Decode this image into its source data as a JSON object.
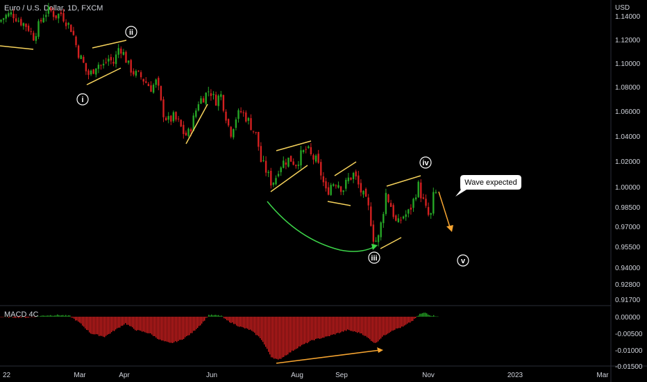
{
  "header": {
    "title": "Euro / U.S. Dollar, 1D, FXCM",
    "currency": "USD"
  },
  "colors": {
    "background": "#000000",
    "up": "#26a626",
    "down": "#d32020",
    "pattern_lines": "#f7d35c",
    "projection_arrow": "#f7a531",
    "curve_arrow": "#3dd64a",
    "divergence_arrow": "#f7a531",
    "text": "#d1d4dc"
  },
  "chart_data": [
    {
      "type": "candlestick",
      "title": "Euro / U.S. Dollar, 1D, FXCM",
      "y_axis_title": "USD",
      "ylim": [
        0.917,
        1.145
      ],
      "y_ticks": [
        "1.14000",
        "1.12000",
        "1.10000",
        "1.08000",
        "1.06000",
        "1.04000",
        "1.02000",
        "1.00000",
        "0.98500",
        "0.97000",
        "0.95500",
        "0.94000",
        "0.92800",
        "0.91700"
      ],
      "x_ticks": [
        "22",
        "Mar",
        "Apr",
        "Jun",
        "Aug",
        "Sep",
        "Nov",
        "2023",
        "Mar"
      ],
      "price_path": [
        [
          0,
          1.135
        ],
        [
          10,
          1.14
        ],
        [
          20,
          1.142
        ],
        [
          30,
          1.136
        ],
        [
          42,
          1.131
        ],
        [
          50,
          1.122
        ],
        [
          58,
          1.132
        ],
        [
          66,
          1.142
        ],
        [
          74,
          1.145
        ],
        [
          82,
          1.14
        ],
        [
          90,
          1.142
        ],
        [
          98,
          1.135
        ],
        [
          106,
          1.128
        ],
        [
          114,
          1.11
        ],
        [
          122,
          1.1
        ],
        [
          128,
          1.09
        ],
        [
          134,
          1.092
        ],
        [
          142,
          1.1
        ],
        [
          150,
          1.097
        ],
        [
          158,
          1.104
        ],
        [
          166,
          1.1
        ],
        [
          174,
          1.115
        ],
        [
          180,
          1.108
        ],
        [
          188,
          1.097
        ],
        [
          196,
          1.091
        ],
        [
          204,
          1.089
        ],
        [
          212,
          1.084
        ],
        [
          220,
          1.079
        ],
        [
          228,
          1.085
        ],
        [
          236,
          1.06
        ],
        [
          244,
          1.052
        ],
        [
          252,
          1.055
        ],
        [
          260,
          1.05
        ],
        [
          266,
          1.043
        ],
        [
          272,
          1.04
        ],
        [
          280,
          1.052
        ],
        [
          288,
          1.068
        ],
        [
          296,
          1.072
        ],
        [
          304,
          1.078
        ],
        [
          312,
          1.068
        ],
        [
          320,
          1.074
        ],
        [
          326,
          1.06
        ],
        [
          334,
          1.042
        ],
        [
          342,
          1.055
        ],
        [
          350,
          1.06
        ],
        [
          358,
          1.054
        ],
        [
          366,
          1.046
        ],
        [
          372,
          1.04
        ],
        [
          378,
          1.02
        ],
        [
          386,
          1.012
        ],
        [
          392,
          1.004
        ],
        [
          398,
          1.005
        ],
        [
          404,
          1.016
        ],
        [
          412,
          1.02
        ],
        [
          420,
          1.022
        ],
        [
          428,
          1.018
        ],
        [
          436,
          1.025
        ],
        [
          444,
          1.03
        ],
        [
          450,
          1.024
        ],
        [
          458,
          1.02
        ],
        [
          464,
          1.011
        ],
        [
          472,
          0.995
        ],
        [
          480,
          1.003
        ],
        [
          488,
          1.004
        ],
        [
          496,
          0.998
        ],
        [
          504,
          1.006
        ],
        [
          512,
          1.01
        ],
        [
          520,
          0.999
        ],
        [
          528,
          0.99
        ],
        [
          534,
          0.982
        ],
        [
          540,
          0.962
        ],
        [
          546,
          0.958
        ],
        [
          552,
          0.975
        ],
        [
          558,
          0.995
        ],
        [
          566,
          0.985
        ],
        [
          574,
          0.97
        ],
        [
          582,
          0.978
        ],
        [
          590,
          0.98
        ],
        [
          598,
          0.99
        ],
        [
          604,
          1.002
        ],
        [
          610,
          0.992
        ],
        [
          616,
          0.982
        ],
        [
          622,
          0.975
        ],
        [
          626,
          0.992
        ],
        [
          630,
          0.995
        ]
      ],
      "wave_labels": [
        "i",
        "ii",
        "iii",
        "iv",
        "v"
      ],
      "annotations": [
        "Wave expected"
      ]
    },
    {
      "type": "histogram",
      "title": "MACD 4C",
      "ylim": [
        -0.0155,
        0.0025
      ],
      "y_ticks": [
        "0.00000",
        "-0.00500",
        "-0.01000",
        "-0.01500"
      ],
      "histogram_path": [
        [
          0,
          -0.0001
        ],
        [
          40,
          -0.0002
        ],
        [
          65,
          0.0004
        ],
        [
          85,
          0.0005
        ],
        [
          100,
          0.0002
        ],
        [
          115,
          -0.002
        ],
        [
          130,
          -0.005
        ],
        [
          150,
          -0.006
        ],
        [
          165,
          -0.004
        ],
        [
          180,
          -0.002
        ],
        [
          195,
          -0.004
        ],
        [
          215,
          -0.005
        ],
        [
          230,
          -0.007
        ],
        [
          245,
          -0.008
        ],
        [
          260,
          -0.007
        ],
        [
          275,
          -0.005
        ],
        [
          290,
          -0.002
        ],
        [
          300,
          0.0005
        ],
        [
          318,
          0.0003
        ],
        [
          325,
          -0.001
        ],
        [
          345,
          -0.003
        ],
        [
          360,
          -0.004
        ],
        [
          375,
          -0.0065
        ],
        [
          390,
          -0.012
        ],
        [
          400,
          -0.013
        ],
        [
          415,
          -0.011
        ],
        [
          430,
          -0.009
        ],
        [
          450,
          -0.007
        ],
        [
          470,
          -0.006
        ],
        [
          485,
          -0.005
        ],
        [
          500,
          -0.004
        ],
        [
          520,
          -0.005
        ],
        [
          540,
          -0.008
        ],
        [
          550,
          -0.006
        ],
        [
          565,
          -0.004
        ],
        [
          580,
          -0.003
        ],
        [
          595,
          -0.001
        ],
        [
          604,
          0.0008
        ],
        [
          612,
          0.0012
        ],
        [
          620,
          0.0004
        ],
        [
          630,
          0.0002
        ]
      ]
    }
  ]
}
